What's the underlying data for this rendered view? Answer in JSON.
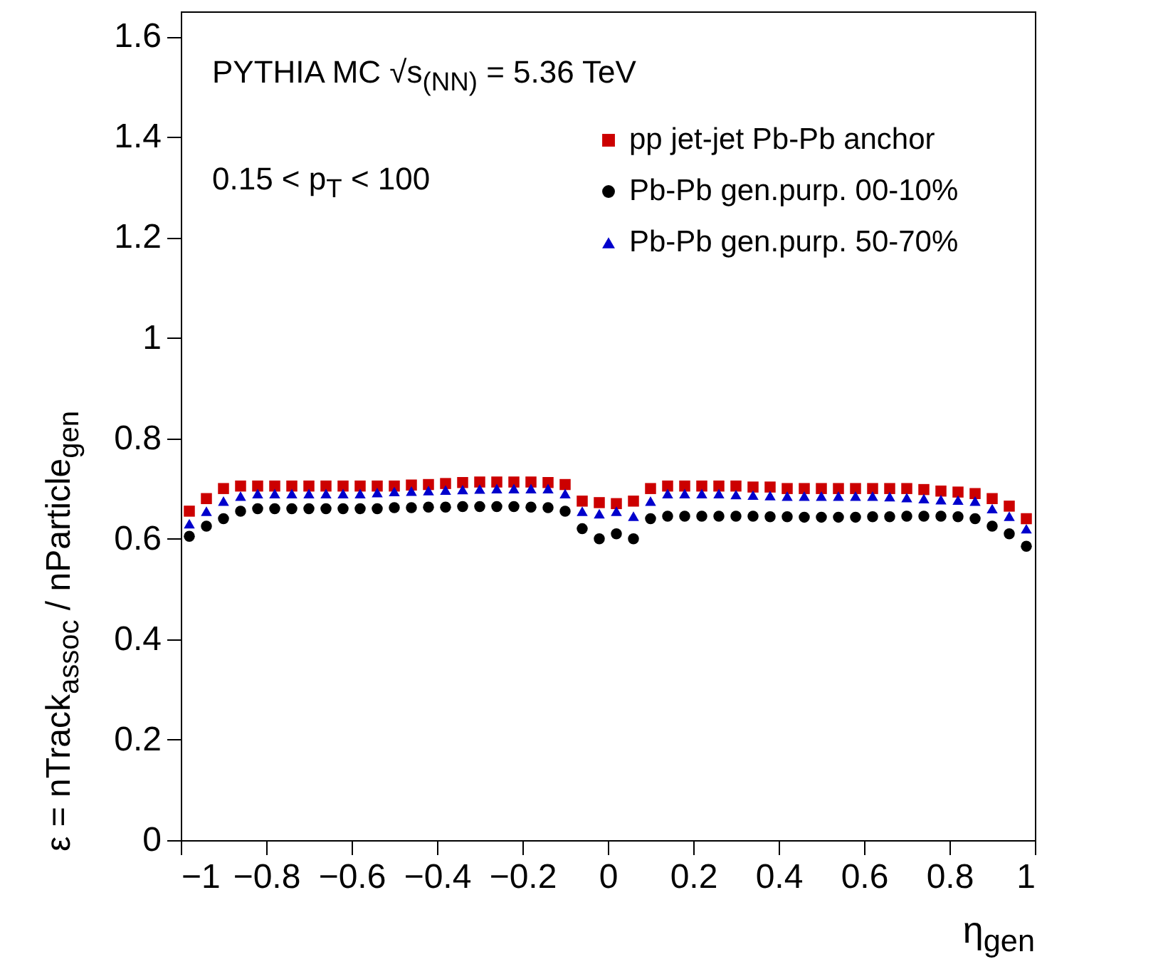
{
  "chart_data": {
    "type": "scatter",
    "xlabel": "η$_{gen}$",
    "ylabel": "ε = nTrack$_{assoc}$ / nParticle$_{gen}$",
    "annotations": [
      "PYTHIA MC √s$_{(NN)}$ = 5.36 TeV",
      "0.15 < p$_{T}$ < 100"
    ],
    "x": [
      -0.98,
      -0.94,
      -0.9,
      -0.86,
      -0.82,
      -0.78,
      -0.74,
      -0.7,
      -0.66,
      -0.62,
      -0.58,
      -0.54,
      -0.5,
      -0.46,
      -0.42,
      -0.38,
      -0.34,
      -0.3,
      -0.26,
      -0.22,
      -0.18,
      -0.14,
      -0.1,
      -0.06,
      -0.02,
      0.02,
      0.06,
      0.1,
      0.14,
      0.18,
      0.22,
      0.26,
      0.3,
      0.34,
      0.38,
      0.42,
      0.46,
      0.5,
      0.54,
      0.58,
      0.62,
      0.66,
      0.7,
      0.74,
      0.78,
      0.82,
      0.86,
      0.9,
      0.94,
      0.98
    ],
    "series": [
      {
        "name": "pp jet-jet Pb-Pb anchor",
        "color": "#cc0000",
        "marker": "square",
        "values": [
          0.655,
          0.68,
          0.7,
          0.705,
          0.705,
          0.705,
          0.705,
          0.705,
          0.705,
          0.705,
          0.705,
          0.705,
          0.705,
          0.707,
          0.708,
          0.71,
          0.712,
          0.713,
          0.713,
          0.713,
          0.713,
          0.712,
          0.708,
          0.675,
          0.672,
          0.67,
          0.675,
          0.7,
          0.705,
          0.705,
          0.705,
          0.705,
          0.705,
          0.703,
          0.703,
          0.7,
          0.7,
          0.7,
          0.7,
          0.7,
          0.7,
          0.7,
          0.7,
          0.698,
          0.695,
          0.693,
          0.69,
          0.68,
          0.665,
          0.64
        ]
      },
      {
        "name": "Pb-Pb gen.purp. 00-10%",
        "color": "#000000",
        "marker": "circle",
        "values": [
          0.605,
          0.625,
          0.64,
          0.655,
          0.66,
          0.66,
          0.66,
          0.66,
          0.66,
          0.66,
          0.66,
          0.66,
          0.662,
          0.662,
          0.663,
          0.663,
          0.664,
          0.664,
          0.664,
          0.664,
          0.663,
          0.662,
          0.655,
          0.62,
          0.6,
          0.61,
          0.6,
          0.64,
          0.645,
          0.645,
          0.645,
          0.645,
          0.645,
          0.645,
          0.644,
          0.644,
          0.643,
          0.643,
          0.643,
          0.643,
          0.644,
          0.644,
          0.645,
          0.645,
          0.645,
          0.644,
          0.64,
          0.625,
          0.61,
          0.585
        ]
      },
      {
        "name": "Pb-Pb gen.purp. 50-70%",
        "color": "#0000cc",
        "marker": "triangle",
        "values": [
          0.63,
          0.655,
          0.675,
          0.685,
          0.69,
          0.69,
          0.69,
          0.69,
          0.69,
          0.69,
          0.69,
          0.692,
          0.694,
          0.695,
          0.696,
          0.697,
          0.698,
          0.699,
          0.7,
          0.7,
          0.7,
          0.7,
          0.69,
          0.655,
          0.65,
          0.655,
          0.645,
          0.675,
          0.69,
          0.69,
          0.69,
          0.69,
          0.688,
          0.687,
          0.686,
          0.685,
          0.685,
          0.685,
          0.685,
          0.685,
          0.685,
          0.684,
          0.682,
          0.68,
          0.678,
          0.677,
          0.675,
          0.66,
          0.645,
          0.62
        ]
      }
    ],
    "xlim": [
      -1,
      1
    ],
    "xticks": [
      -1,
      -0.8,
      -0.6,
      -0.4,
      -0.2,
      0,
      0.2,
      0.4,
      0.6,
      0.8,
      1
    ],
    "ylim": [
      0,
      1.65
    ],
    "yticks": [
      0,
      0.2,
      0.4,
      0.6,
      0.8,
      1,
      1.2,
      1.4,
      1.6
    ],
    "grid": false,
    "legend": "top right"
  }
}
